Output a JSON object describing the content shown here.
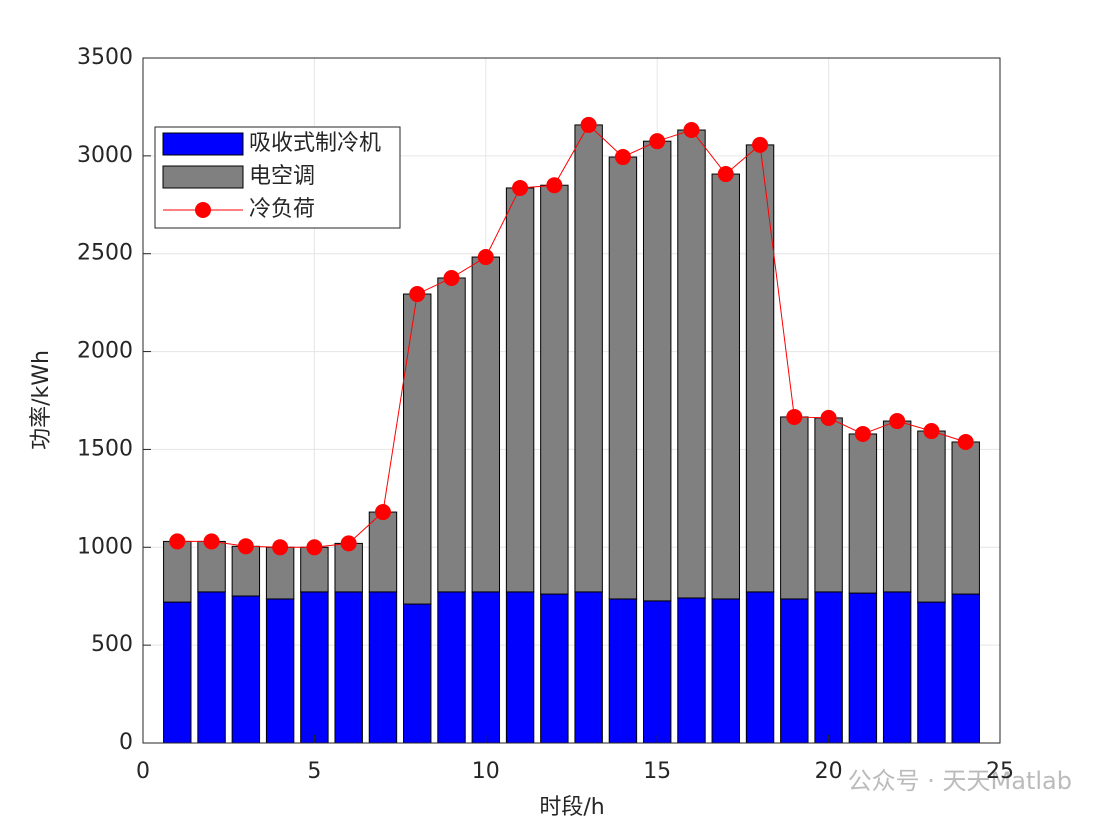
{
  "chart_data": {
    "type": "bar",
    "stacked": true,
    "xlabel": "时段/h",
    "ylabel": "功率/kWh",
    "x": [
      1,
      2,
      3,
      4,
      5,
      6,
      7,
      8,
      9,
      10,
      11,
      12,
      13,
      14,
      15,
      16,
      17,
      18,
      19,
      20,
      21,
      22,
      23,
      24
    ],
    "series": [
      {
        "name": "吸收式制冷机",
        "type": "bar",
        "color": "#0000ff",
        "values": [
          720,
          772,
          751,
          736,
          772,
          772,
          772,
          710,
          772,
          772,
          772,
          761,
          772,
          736,
          726,
          741,
          736,
          772,
          736,
          772,
          766,
          772,
          720,
          761
        ]
      },
      {
        "name": "电空调",
        "type": "bar",
        "color": "#808080",
        "values": [
          310,
          258,
          254,
          264,
          228,
          248,
          408,
          1584,
          1604,
          1711,
          2064,
          2089,
          2386,
          2258,
          2349,
          2391,
          2171,
          2284,
          930,
          889,
          813,
          873,
          874,
          777
        ]
      },
      {
        "name": "冷负荷",
        "type": "line",
        "color": "#ff0000",
        "values": [
          1030,
          1030,
          1005,
          1000,
          1000,
          1020,
          1180,
          2294,
          2376,
          2483,
          2836,
          2850,
          3158,
          2994,
          3075,
          3132,
          2907,
          3056,
          1666,
          1661,
          1579,
          1645,
          1594,
          1538
        ]
      }
    ],
    "xlim": [
      0,
      25
    ],
    "xticks": [
      0,
      5,
      10,
      15,
      20,
      25
    ],
    "ylim": [
      0,
      3500
    ],
    "yticks": [
      0,
      500,
      1000,
      1500,
      2000,
      2500,
      3000,
      3500
    ],
    "grid": true,
    "legend": "upper left",
    "watermark": "公众号 · 天天Matlab"
  }
}
